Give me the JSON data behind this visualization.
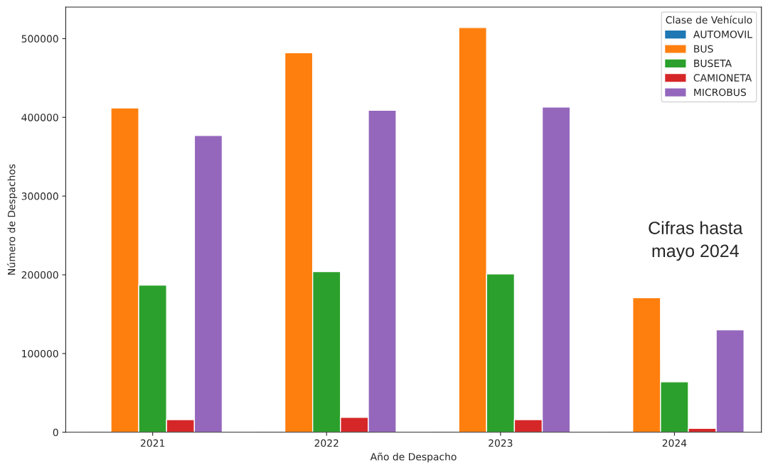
{
  "chart_data": {
    "type": "bar",
    "xlabel": "Año de Despacho",
    "ylabel": "Número de Despachos",
    "legend_title": "Clase de Vehículo",
    "legend": "top right",
    "grid": false,
    "categories": [
      "2021",
      "2022",
      "2023",
      "2024"
    ],
    "series": [
      {
        "name": "AUTOMOVIL",
        "color": "#1f77b4",
        "values": [
          1000,
          1000,
          1000,
          1000
        ]
      },
      {
        "name": "BUS",
        "color": "#ff7f0e",
        "values": [
          412000,
          482000,
          514000,
          171000
        ]
      },
      {
        "name": "BUSETA",
        "color": "#2ca02c",
        "values": [
          187000,
          204000,
          201000,
          64000
        ]
      },
      {
        "name": "CAMIONETA",
        "color": "#d62728",
        "values": [
          16000,
          19000,
          16000,
          5000
        ]
      },
      {
        "name": "MICROBUS",
        "color": "#9467bd",
        "values": [
          377000,
          409000,
          413000,
          130000
        ]
      }
    ],
    "ylim": [
      0,
      540000
    ],
    "yticks": [
      0,
      100000,
      200000,
      300000,
      400000,
      500000
    ],
    "annotations": [
      "Cifras hasta\nmayo 2024"
    ]
  }
}
